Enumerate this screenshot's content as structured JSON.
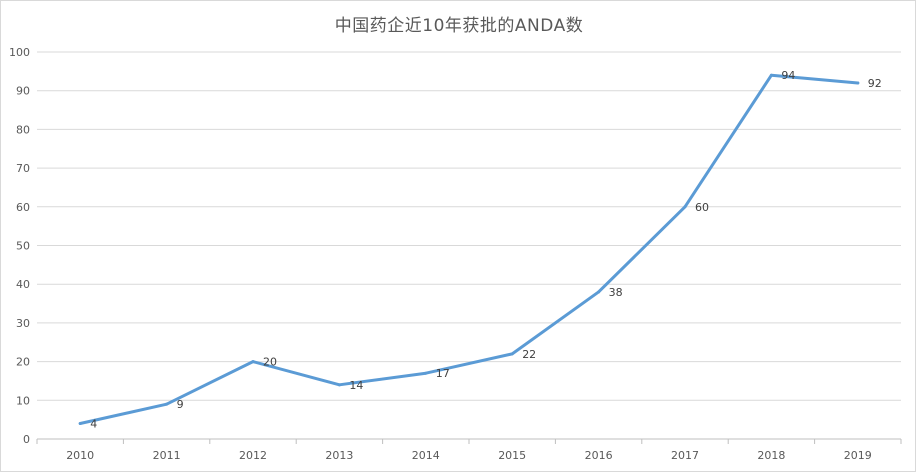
{
  "chart_data": {
    "type": "line",
    "title": "中国药企近10年获批的ANDA数",
    "xlabel": "",
    "ylabel": "",
    "categories": [
      "2010",
      "2011",
      "2012",
      "2013",
      "2014",
      "2015",
      "2016",
      "2017",
      "2018",
      "2019"
    ],
    "series": [
      {
        "values": [
          4,
          9,
          20,
          14,
          17,
          22,
          38,
          60,
          94,
          92
        ],
        "color": "#5B9BD5"
      }
    ],
    "ylim": [
      0,
      100
    ],
    "yticks": [
      0,
      10,
      20,
      30,
      40,
      50,
      60,
      70,
      80,
      90,
      100
    ],
    "grid": true,
    "gridline_color": "#d9d9d9",
    "legend": "none",
    "data_labels": true
  }
}
